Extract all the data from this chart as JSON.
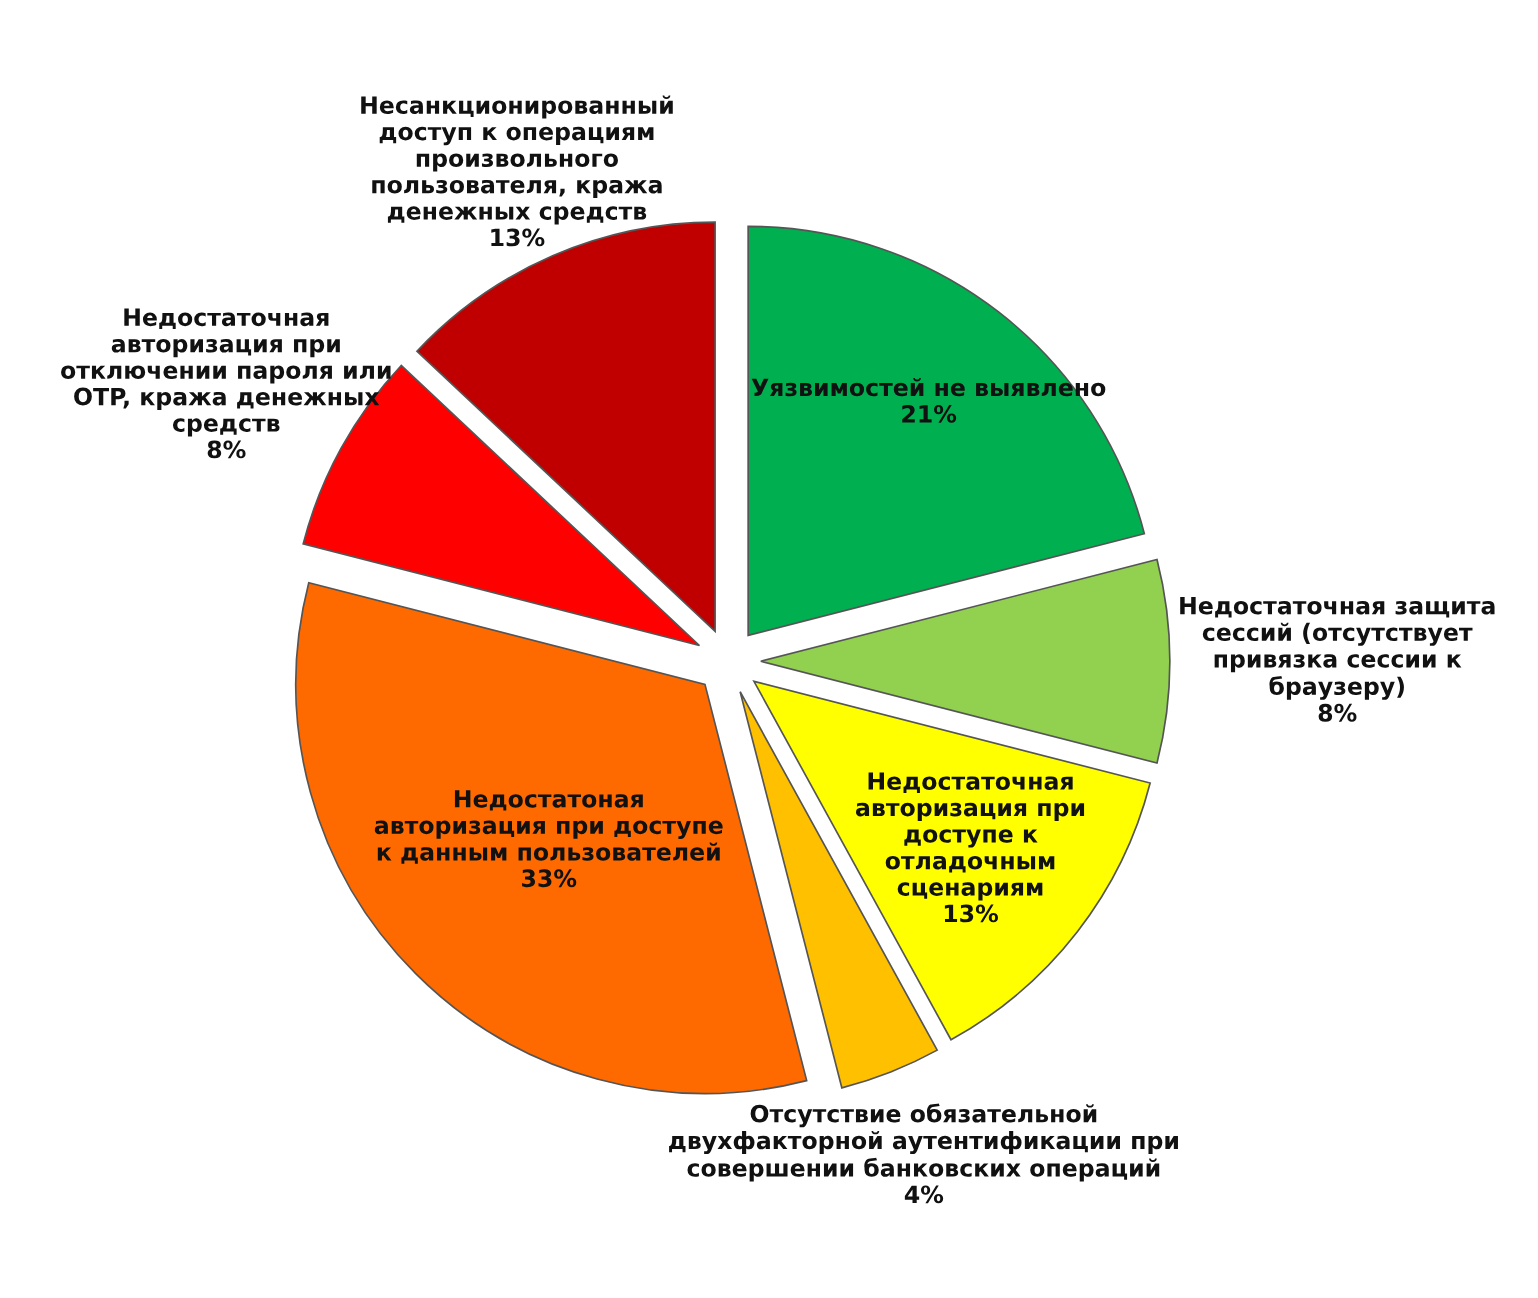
{
  "chart_data": {
    "type": "pie",
    "categories": [
      "Уязвимостей не выявлено",
      "Недостаточная защита\nсессий (отсутствует\nпривязка сессии к\nбраузеру)",
      "Недостаточная\nавторизация при\nдоступе к\nотладочным\nсценариям",
      "Отсутствие обязательной\nдвухфакторной аутентификации при\nсовершении банковских операций",
      "Недостатоная\nавторизация при доступе\nк данным пользователей",
      "Недостаточная\nавторизация при\nотключении пароля или\nOTP, кража денежных\nсредств",
      "Несанкционированный\nдоступ к операциям\nпроизвольного\nпользователя, кража\nденежных средств"
    ],
    "values": [
      21,
      8,
      13,
      4,
      33,
      8,
      13
    ],
    "value_labels": [
      "21%",
      "8%",
      "13%",
      "4%",
      "33%",
      "8%",
      "13%"
    ],
    "colors": [
      "#00b050",
      "#92d050",
      "#ffff00",
      "#ffc000",
      "#ff6a00",
      "#ff0000",
      "#c00000"
    ]
  }
}
